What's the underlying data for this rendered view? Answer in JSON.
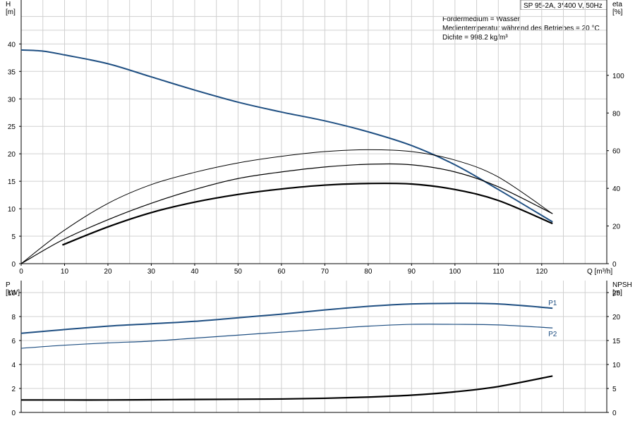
{
  "header": {
    "title": "SP 95-2A, 3*400 V, 50Hz",
    "info": [
      "Fördermedium = Wasser",
      "Medientemperatur während des Betriebes = 20 °C",
      "Dichte = 998.2 kg/m³"
    ]
  },
  "chart_data": [
    {
      "type": "line",
      "panel": "top",
      "xlabel": "Q [m³/h]",
      "ylabel_left": [
        "H",
        "[m]"
      ],
      "ylabel_right": [
        "eta",
        "[%]"
      ],
      "xlim": [
        0,
        135
      ],
      "ylim_left": [
        0,
        48
      ],
      "ylim_right": [
        0,
        140
      ],
      "xticks": [
        0,
        10,
        20,
        30,
        40,
        50,
        60,
        70,
        80,
        90,
        100,
        110,
        120
      ],
      "yticks_left": [
        0,
        5,
        10,
        15,
        20,
        25,
        30,
        35,
        40
      ],
      "yticks_right": [
        0,
        20,
        40,
        60,
        80,
        100
      ],
      "grid": true,
      "series": [
        {
          "axis": "left",
          "color": "#1f4f82",
          "width": 2,
          "x": [
            0,
            5,
            10,
            20,
            30,
            40,
            50,
            60,
            70,
            80,
            90,
            100,
            110,
            122.5
          ],
          "y": [
            38.9,
            38.7,
            38.0,
            36.4,
            34.0,
            31.6,
            29.4,
            27.6,
            26.0,
            24.0,
            21.5,
            18.0,
            13.5,
            7.6
          ]
        },
        {
          "axis": "right",
          "color": "#000000",
          "width": 1,
          "x": [
            0,
            9.5,
            20,
            30,
            40,
            50,
            60,
            70,
            80,
            90,
            100,
            110,
            122.5
          ],
          "y": [
            0,
            17,
            32,
            42,
            48.5,
            53.5,
            57,
            59.5,
            60.5,
            59.5,
            55,
            46,
            26.5
          ]
        },
        {
          "axis": "left",
          "color": "#000000",
          "width": 1.2,
          "x": [
            0,
            9.5,
            20,
            30,
            40,
            50,
            60,
            70,
            80,
            90,
            100,
            110,
            122.5
          ],
          "y": [
            0,
            4.3,
            8.0,
            11.0,
            13.5,
            15.5,
            16.7,
            17.6,
            18.1,
            18.0,
            16.7,
            14.0,
            9.1
          ]
        },
        {
          "axis": "left",
          "color": "#000000",
          "width": 2.2,
          "x": [
            9.5,
            20,
            30,
            40,
            50,
            60,
            70,
            80,
            90,
            100,
            110,
            122.5
          ],
          "y": [
            3.4,
            6.7,
            9.3,
            11.2,
            12.6,
            13.6,
            14.3,
            14.6,
            14.5,
            13.5,
            11.5,
            7.3
          ]
        }
      ]
    },
    {
      "type": "line",
      "panel": "bottom",
      "ylabel_left": [
        "P",
        "[kW]"
      ],
      "ylabel_right": [
        "NPSH",
        "[m]"
      ],
      "xlim": [
        0,
        135
      ],
      "ylim_left": [
        0,
        11
      ],
      "ylim_right": [
        0,
        27.5
      ],
      "yticks_left": [
        0,
        2,
        4,
        6,
        8,
        10
      ],
      "yticks_right": [
        0,
        5,
        10,
        15,
        20,
        25
      ],
      "grid": true,
      "series": [
        {
          "name": "P1",
          "axis": "left",
          "color": "#1f4f82",
          "width": 2,
          "thin_from_x": 0,
          "thick_from_x": 9.5,
          "x": [
            0,
            9.5,
            20,
            30,
            40,
            50,
            60,
            70,
            80,
            90,
            100,
            110,
            122.5
          ],
          "y": [
            6.6,
            6.9,
            7.2,
            7.4,
            7.6,
            7.9,
            8.2,
            8.55,
            8.85,
            9.05,
            9.1,
            9.05,
            8.7
          ]
        },
        {
          "name": "P2",
          "axis": "left",
          "color": "#1f4f82",
          "width": 1.2,
          "x": [
            0,
            9.5,
            20,
            30,
            40,
            50,
            60,
            70,
            80,
            90,
            100,
            110,
            122.5
          ],
          "y": [
            5.35,
            5.6,
            5.8,
            5.95,
            6.2,
            6.45,
            6.7,
            6.95,
            7.2,
            7.35,
            7.35,
            7.3,
            7.05
          ]
        },
        {
          "axis": "right",
          "color": "#000000",
          "width": 2.2,
          "x": [
            0,
            9.5,
            20,
            30,
            40,
            50,
            60,
            70,
            80,
            90,
            100,
            110,
            122.5
          ],
          "y": [
            2.6,
            2.6,
            2.6,
            2.65,
            2.7,
            2.75,
            2.8,
            2.95,
            3.2,
            3.6,
            4.3,
            5.4,
            7.6
          ]
        }
      ]
    }
  ]
}
